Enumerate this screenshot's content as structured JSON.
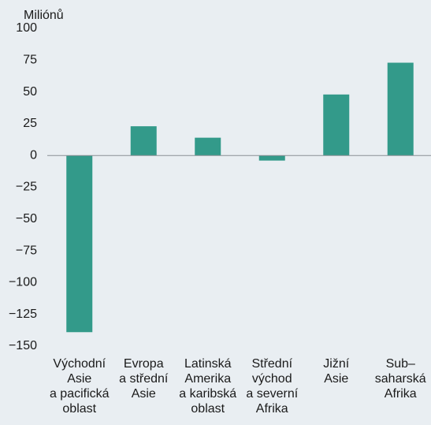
{
  "chart_data": {
    "type": "bar",
    "ylabel": "Miliónů",
    "categories": [
      "Východní\nAsie\na pacifická\noblast",
      "Evropa\na střední\nAsie",
      "Latinská\nAmerika\na karibská\noblast",
      "Střední\nvýchod\na severní\nAfrika",
      "Jižní\nAsie",
      "Sub–\nsaharská\nAfrika"
    ],
    "values": [
      -139,
      23,
      14,
      -4,
      48,
      73
    ],
    "color": "#339a8a",
    "ylim": [
      -150,
      100
    ],
    "yticks": [
      100,
      75,
      50,
      25,
      0,
      {
        "value": -25,
        "label": "−25"
      },
      {
        "value": -50,
        "label": "−50"
      },
      {
        "value": -75,
        "label": "−75"
      },
      {
        "value": -100,
        "label": "−100"
      },
      {
        "value": -125,
        "label": "−125"
      },
      {
        "value": -150,
        "label": "−150"
      }
    ]
  }
}
